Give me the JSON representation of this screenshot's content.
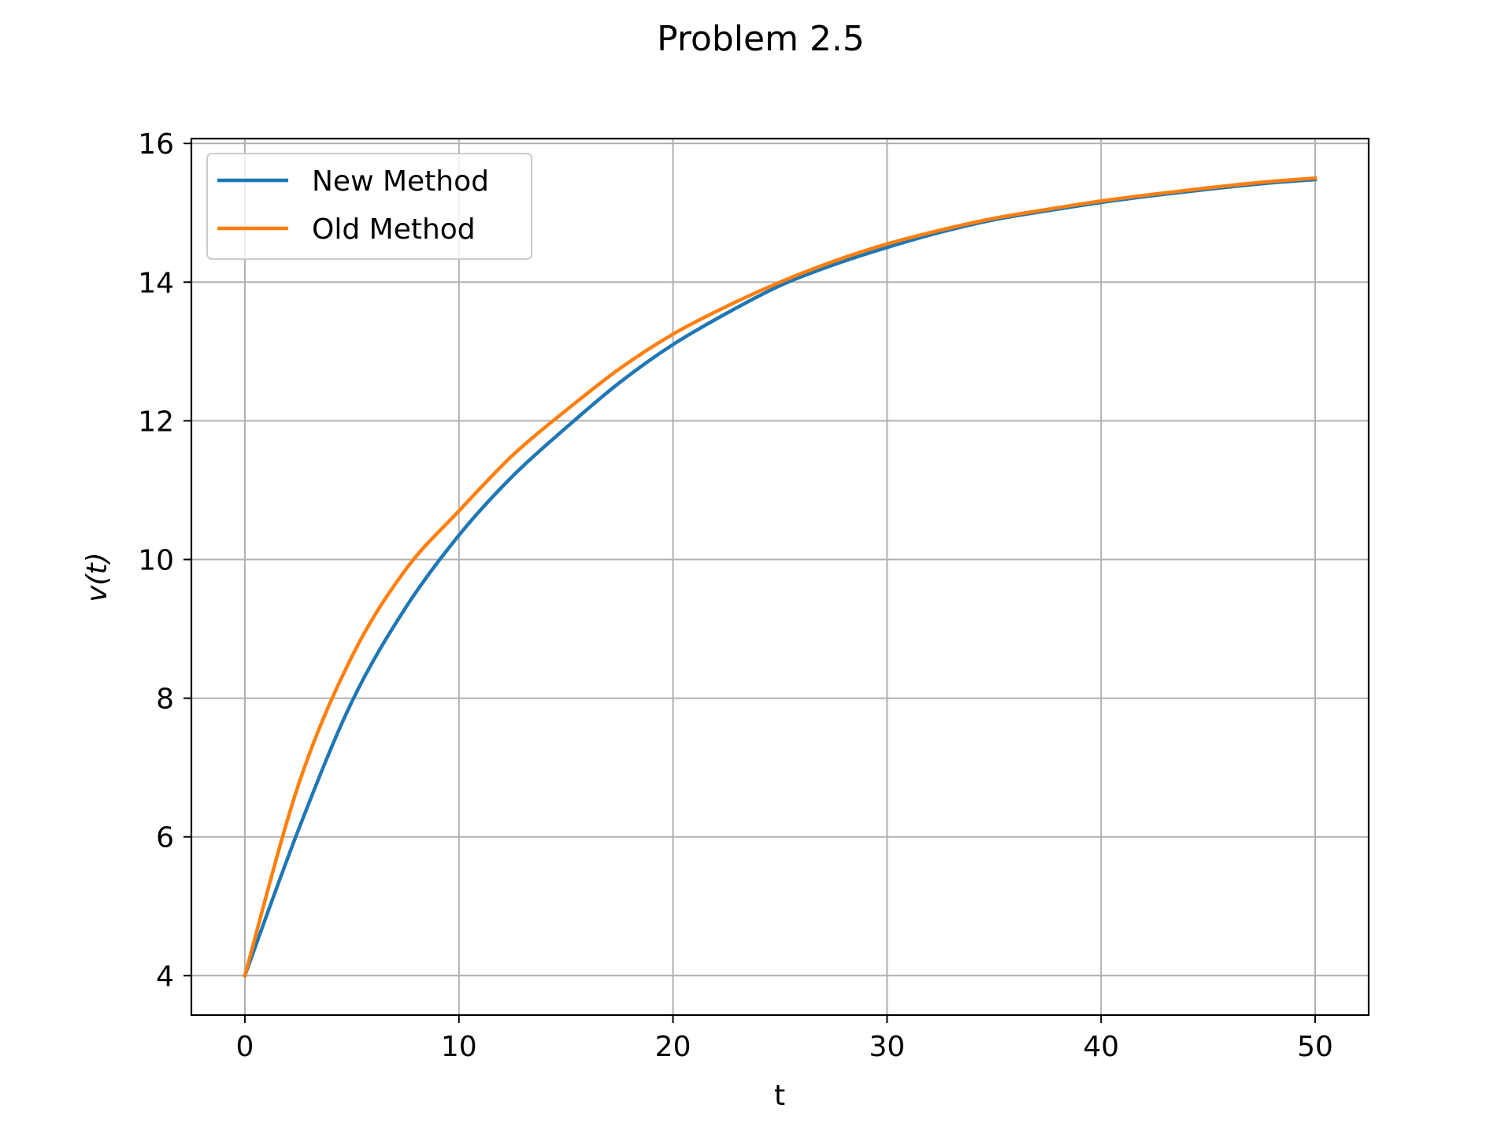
{
  "chart_data": {
    "type": "line",
    "title": "Problem 2.5",
    "xlabel": "t",
    "ylabel": "v(t)",
    "xlim": [
      -2.5,
      52.5
    ],
    "ylim": [
      3.43,
      16.07
    ],
    "xticks": [
      0,
      10,
      20,
      30,
      40,
      50
    ],
    "yticks": [
      4,
      6,
      8,
      10,
      12,
      14,
      16
    ],
    "grid": true,
    "legend_position": "top-left",
    "x": [
      0,
      2.5,
      5,
      7.5,
      10,
      12.5,
      15,
      17.5,
      20,
      22.5,
      25,
      27.5,
      30,
      32.5,
      35,
      37.5,
      40,
      42.5,
      45,
      47.5,
      50
    ],
    "series": [
      {
        "name": "New Method",
        "color": "#1f77b4",
        "values": [
          4.0,
          6.1,
          7.95,
          9.3,
          10.35,
          11.2,
          11.9,
          12.55,
          13.1,
          13.55,
          13.95,
          14.25,
          14.5,
          14.72,
          14.9,
          15.03,
          15.15,
          15.25,
          15.34,
          15.42,
          15.48
        ]
      },
      {
        "name": "Old Method",
        "color": "#ff7f0e",
        "values": [
          4.0,
          6.75,
          8.6,
          9.85,
          10.7,
          11.5,
          12.15,
          12.75,
          13.25,
          13.65,
          14.0,
          14.3,
          14.55,
          14.75,
          14.92,
          15.05,
          15.17,
          15.27,
          15.36,
          15.44,
          15.5
        ]
      }
    ]
  }
}
